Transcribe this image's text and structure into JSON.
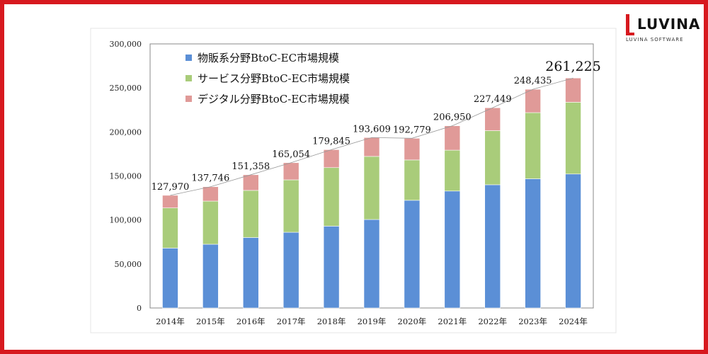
{
  "logo": {
    "word": "LUVINA",
    "sub": "LUVINA SOFTWARE"
  },
  "chart_data": {
    "type": "bar",
    "stacked": true,
    "title": "",
    "xlabel": "",
    "ylabel": "",
    "ylim": [
      0,
      300000
    ],
    "yticks": [
      0,
      50000,
      100000,
      150000,
      200000,
      250000,
      300000
    ],
    "ytick_labels": [
      "0",
      "50,000",
      "100,000",
      "150,000",
      "200,000",
      "250,000",
      "300,000"
    ],
    "categories": [
      "2014年",
      "2015年",
      "2016年",
      "2017年",
      "2018年",
      "2019年",
      "2020年",
      "2021年",
      "2022年",
      "2023年",
      "2024年"
    ],
    "series": [
      {
        "name": "物販系分野BtoC-EC市場規模",
        "color": "#5b8fd6",
        "values": [
          68043,
          72398,
          80043,
          86008,
          92992,
          100515,
          122333,
          132865,
          139997,
          146760,
          152194
        ]
      },
      {
        "name": "サービス分野BtoC-EC市場規模",
        "color": "#a9cc7a",
        "values": [
          45646,
          49014,
          53532,
          59568,
          66471,
          71672,
          45832,
          46424,
          61477,
          75169,
          81540
        ]
      },
      {
        "name": "デジタル分野BtoC-EC市場規模",
        "color": "#e09a98",
        "values": [
          14281,
          16334,
          17782,
          19478,
          20382,
          21422,
          24614,
          27661,
          25974,
          26506,
          27491
        ]
      }
    ],
    "totals": [
      127970,
      137746,
      151358,
      165054,
      179845,
      193609,
      192779,
      206950,
      227449,
      248435,
      261225
    ],
    "total_labels": [
      "127,970",
      "137,746",
      "151,358",
      "165,054",
      "179,845",
      "193,609",
      "192,779",
      "206,950",
      "227,449",
      "248,435",
      "261,225"
    ],
    "legend_position": "top-left",
    "grid": false
  }
}
